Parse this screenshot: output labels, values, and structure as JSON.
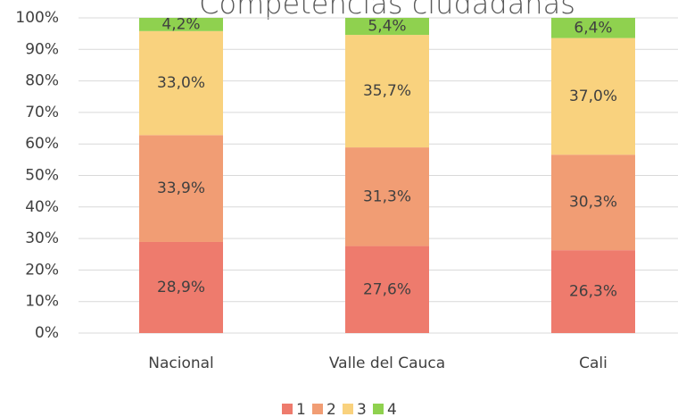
{
  "chart_data": {
    "type": "stacked_bar",
    "title": "Competencias ciudadanas",
    "categories": [
      "Nacional",
      "Valle del Cauca",
      "Cali"
    ],
    "series": [
      {
        "name": "1",
        "color": "#ee7b6d",
        "values": [
          28.9,
          27.6,
          26.3
        ],
        "value_labels": [
          "28,9%",
          "27,6%",
          "26,3%"
        ]
      },
      {
        "name": "2",
        "color": "#f19d74",
        "values": [
          33.9,
          31.3,
          30.3
        ],
        "value_labels": [
          "33,9%",
          "31,3%",
          "30,3%"
        ]
      },
      {
        "name": "3",
        "color": "#f9d27e",
        "values": [
          33.0,
          35.7,
          37.0
        ],
        "value_labels": [
          "33,0%",
          "35,7%",
          "37,0%"
        ]
      },
      {
        "name": "4",
        "color": "#8fd14f",
        "values": [
          4.2,
          5.4,
          6.4
        ],
        "value_labels": [
          "4,2%",
          "5,4%",
          "6,4%"
        ]
      }
    ],
    "ylim": [
      0,
      100
    ],
    "yticks": [
      {
        "value": 0,
        "label": "0%"
      },
      {
        "value": 10,
        "label": "10%"
      },
      {
        "value": 20,
        "label": "20%"
      },
      {
        "value": 30,
        "label": "30%"
      },
      {
        "value": 40,
        "label": "40%"
      },
      {
        "value": 50,
        "label": "50%"
      },
      {
        "value": 60,
        "label": "60%"
      },
      {
        "value": 70,
        "label": "70%"
      },
      {
        "value": 80,
        "label": "80%"
      },
      {
        "value": 90,
        "label": "90%"
      },
      {
        "value": 100,
        "label": "100%"
      }
    ],
    "grid": true,
    "legend": "bottom"
  }
}
